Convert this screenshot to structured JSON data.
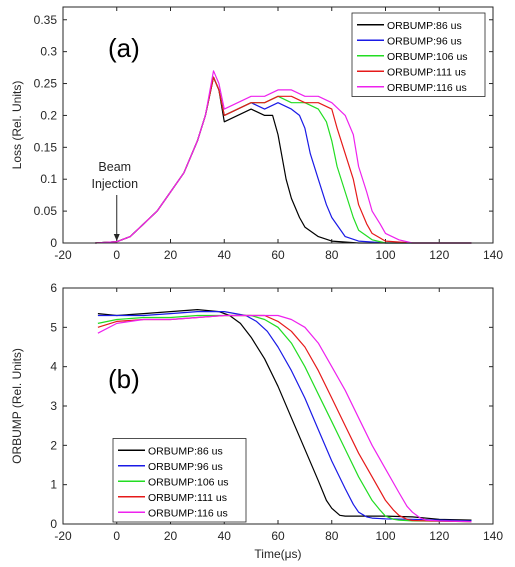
{
  "chart_data": [
    {
      "type": "line",
      "panel_label": "(a)",
      "xlabel": "",
      "ylabel": "Loss (Rel. Units)",
      "xlim": [
        -20,
        140
      ],
      "ylim": [
        0,
        0.37
      ],
      "xticks": [
        "-20",
        "0",
        "20",
        "40",
        "60",
        "80",
        "100",
        "120",
        "140"
      ],
      "yticks": [
        "0",
        "0.05",
        "0.1",
        "0.15",
        "0.2",
        "0.25",
        "0.3",
        "0.35"
      ],
      "legend_position": "top-right",
      "annotation": {
        "line1": "Beam",
        "line2": "Injection",
        "x": 0,
        "y": 0
      },
      "series": [
        {
          "name": "ORBUMP:86 us",
          "color": "#000000",
          "x": [
            -8,
            0,
            5,
            10,
            15,
            20,
            25,
            30,
            33,
            36,
            38,
            40,
            45,
            50,
            55,
            58,
            60,
            63,
            65,
            68,
            70,
            75,
            80,
            90,
            100,
            110,
            120,
            132
          ],
          "y": [
            0,
            0.002,
            0.01,
            0.03,
            0.05,
            0.08,
            0.11,
            0.16,
            0.2,
            0.26,
            0.24,
            0.19,
            0.2,
            0.21,
            0.2,
            0.2,
            0.17,
            0.1,
            0.07,
            0.04,
            0.025,
            0.01,
            0.003,
            0,
            0,
            0,
            0,
            0
          ]
        },
        {
          "name": "ORBUMP:96 us",
          "color": "#1a1ae6",
          "x": [
            -8,
            0,
            5,
            10,
            15,
            20,
            25,
            30,
            33,
            36,
            38,
            40,
            45,
            50,
            55,
            60,
            65,
            68,
            70,
            72,
            75,
            78,
            80,
            85,
            90,
            100,
            110,
            120,
            132
          ],
          "y": [
            0,
            0.002,
            0.01,
            0.03,
            0.05,
            0.08,
            0.11,
            0.16,
            0.2,
            0.26,
            0.24,
            0.2,
            0.21,
            0.22,
            0.21,
            0.22,
            0.21,
            0.2,
            0.18,
            0.14,
            0.1,
            0.06,
            0.04,
            0.01,
            0.003,
            0,
            0,
            0,
            0
          ]
        },
        {
          "name": "ORBUMP:106 us",
          "color": "#22dd22",
          "x": [
            -8,
            0,
            5,
            10,
            15,
            20,
            25,
            30,
            33,
            36,
            38,
            40,
            45,
            50,
            55,
            60,
            65,
            70,
            75,
            78,
            80,
            82,
            85,
            88,
            90,
            95,
            100,
            110,
            120,
            132
          ],
          "y": [
            0,
            0.002,
            0.01,
            0.03,
            0.05,
            0.08,
            0.11,
            0.16,
            0.2,
            0.26,
            0.24,
            0.2,
            0.21,
            0.22,
            0.22,
            0.23,
            0.22,
            0.22,
            0.21,
            0.19,
            0.16,
            0.12,
            0.08,
            0.04,
            0.02,
            0.005,
            0,
            0,
            0,
            0
          ]
        },
        {
          "name": "ORBUMP:111 us",
          "color": "#e61a1a",
          "x": [
            -8,
            0,
            5,
            10,
            15,
            20,
            25,
            30,
            33,
            36,
            38,
            40,
            45,
            50,
            55,
            60,
            65,
            70,
            75,
            80,
            82,
            85,
            88,
            90,
            93,
            95,
            100,
            110,
            120,
            132
          ],
          "y": [
            0,
            0.002,
            0.01,
            0.03,
            0.05,
            0.08,
            0.11,
            0.16,
            0.2,
            0.26,
            0.24,
            0.2,
            0.21,
            0.22,
            0.22,
            0.23,
            0.23,
            0.22,
            0.22,
            0.21,
            0.18,
            0.14,
            0.1,
            0.06,
            0.03,
            0.015,
            0.003,
            0,
            0,
            0
          ]
        },
        {
          "name": "ORBUMP:116 us",
          "color": "#ee22ee",
          "x": [
            -8,
            0,
            5,
            10,
            15,
            20,
            25,
            30,
            33,
            36,
            38,
            40,
            45,
            50,
            55,
            60,
            65,
            70,
            75,
            80,
            85,
            88,
            90,
            93,
            95,
            98,
            100,
            105,
            110,
            120,
            132
          ],
          "y": [
            0,
            0.002,
            0.01,
            0.03,
            0.05,
            0.08,
            0.11,
            0.16,
            0.2,
            0.27,
            0.25,
            0.21,
            0.22,
            0.23,
            0.23,
            0.24,
            0.24,
            0.23,
            0.23,
            0.22,
            0.2,
            0.17,
            0.12,
            0.08,
            0.05,
            0.03,
            0.015,
            0.005,
            0,
            0,
            0
          ]
        }
      ]
    },
    {
      "type": "line",
      "panel_label": "(b)",
      "xlabel": "Time(μs)",
      "ylabel": "ORBUMP (Rel. Units)",
      "xlim": [
        -20,
        140
      ],
      "ylim": [
        0,
        6
      ],
      "xticks": [
        "-20",
        "0",
        "20",
        "40",
        "60",
        "80",
        "100",
        "120",
        "140"
      ],
      "yticks": [
        "0",
        "1",
        "2",
        "3",
        "4",
        "5",
        "6"
      ],
      "legend_position": "bottom-left",
      "series": [
        {
          "name": "ORBUMP:86 us",
          "color": "#000000",
          "x": [
            -7,
            0,
            10,
            20,
            30,
            38,
            42,
            46,
            50,
            55,
            60,
            65,
            70,
            75,
            78,
            80,
            83,
            85,
            90,
            100,
            110,
            120,
            132
          ],
          "y": [
            5.35,
            5.3,
            5.35,
            5.4,
            5.45,
            5.4,
            5.3,
            5.1,
            4.75,
            4.2,
            3.5,
            2.7,
            1.9,
            1.1,
            0.6,
            0.4,
            0.22,
            0.2,
            0.2,
            0.2,
            0.18,
            0.12,
            0.1
          ]
        },
        {
          "name": "ORBUMP:96 us",
          "color": "#1a1ae6",
          "x": [
            -7,
            0,
            10,
            20,
            30,
            40,
            48,
            52,
            56,
            60,
            65,
            70,
            75,
            80,
            85,
            88,
            90,
            93,
            95,
            100,
            110,
            120,
            132
          ],
          "y": [
            5.3,
            5.3,
            5.3,
            5.35,
            5.4,
            5.4,
            5.3,
            5.15,
            4.9,
            4.5,
            3.9,
            3.2,
            2.4,
            1.6,
            0.9,
            0.5,
            0.3,
            0.18,
            0.15,
            0.13,
            0.12,
            0.1,
            0.08
          ]
        },
        {
          "name": "ORBUMP:106 us",
          "color": "#22dd22",
          "x": [
            -7,
            0,
            10,
            20,
            30,
            40,
            50,
            55,
            60,
            65,
            70,
            75,
            80,
            85,
            90,
            95,
            98,
            100,
            103,
            105,
            110,
            120,
            132
          ],
          "y": [
            5.1,
            5.2,
            5.25,
            5.25,
            5.3,
            5.3,
            5.3,
            5.2,
            5.0,
            4.6,
            4.0,
            3.3,
            2.6,
            1.9,
            1.2,
            0.6,
            0.35,
            0.2,
            0.12,
            0.1,
            0.08,
            0.07,
            0.06
          ]
        },
        {
          "name": "ORBUMP:111 us",
          "color": "#e61a1a",
          "x": [
            -7,
            0,
            10,
            20,
            30,
            40,
            50,
            55,
            60,
            65,
            70,
            75,
            80,
            85,
            90,
            95,
            100,
            103,
            105,
            108,
            110,
            120,
            132
          ],
          "y": [
            5.0,
            5.15,
            5.2,
            5.2,
            5.25,
            5.3,
            5.3,
            5.3,
            5.15,
            4.9,
            4.5,
            3.9,
            3.2,
            2.5,
            1.8,
            1.2,
            0.6,
            0.35,
            0.22,
            0.12,
            0.09,
            0.07,
            0.06
          ]
        },
        {
          "name": "ORBUMP:116 us",
          "color": "#ee22ee",
          "x": [
            -7,
            0,
            10,
            20,
            30,
            40,
            50,
            60,
            65,
            70,
            75,
            80,
            85,
            90,
            95,
            100,
            105,
            108,
            110,
            113,
            115,
            120,
            132
          ],
          "y": [
            4.85,
            5.1,
            5.2,
            5.2,
            5.25,
            5.3,
            5.3,
            5.3,
            5.2,
            5.0,
            4.6,
            4.0,
            3.4,
            2.7,
            2.0,
            1.4,
            0.8,
            0.45,
            0.3,
            0.15,
            0.1,
            0.08,
            0.06
          ]
        }
      ]
    }
  ]
}
